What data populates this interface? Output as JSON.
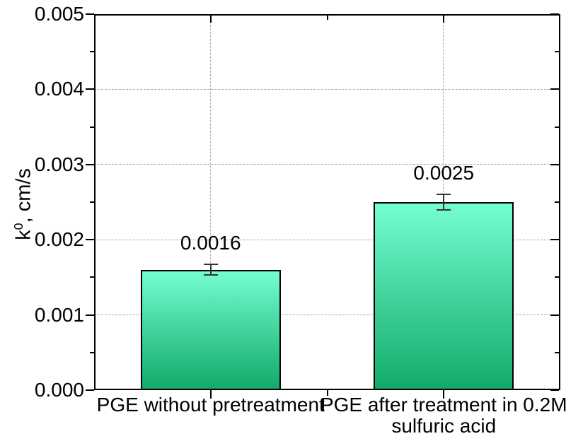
{
  "chart_data": {
    "type": "bar",
    "title": "",
    "categories": [
      "PGE without pretreatment",
      "PGE after treatment in 0.2M\nsulfuric acid"
    ],
    "values": [
      0.0016,
      0.0025
    ],
    "errors": [
      7e-05,
      0.0001
    ],
    "value_labels": [
      "0.0016",
      "0.0025"
    ],
    "xlabel": "",
    "ylabel": "k⁰, cm/s",
    "ylabel_parts": {
      "base": "k",
      "sup": "0",
      "rest": ", cm/s"
    },
    "ylim": [
      0,
      0.005
    ],
    "ytick_step": 0.001,
    "ytick_minor_step": 0.0005,
    "ytick_labels": [
      "0.000",
      "0.001",
      "0.002",
      "0.003",
      "0.004",
      "0.005"
    ],
    "grid": {
      "horizontal_major": "dashed",
      "vertical_category_droplines": "dashed"
    },
    "legend": "none",
    "colors": {
      "bar_top": "#74fdd2",
      "bar_bottom": "#12ab69",
      "bar_border": "#000000",
      "gridline": "#a8a8a8",
      "axis": "#000000",
      "error_bar": "#333333",
      "text": "#000000",
      "background": "#ffffff"
    }
  }
}
